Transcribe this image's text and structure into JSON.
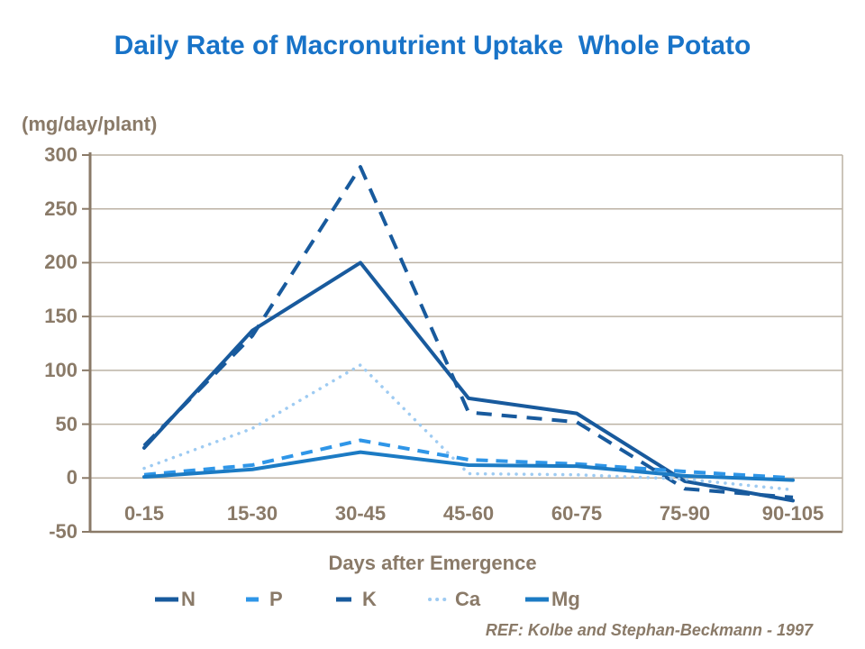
{
  "title": "Daily Rate of Macronutrient Uptake  Whole Potato",
  "reference": "REF: Kolbe and Stephan-Beckmann - 1997",
  "colors": {
    "title_blue": "#1873C8",
    "text_taupe": "#8A7A68",
    "gridline": "#BCB2A4",
    "axis": "#8A7A68",
    "series_dark_blue": "#185A9D",
    "series_bright_blue": "#2F96E8",
    "series_light_blue": "#9ECBF2",
    "series_medium_blue": "#1C7BC4"
  },
  "chart_data": {
    "type": "line",
    "title": "Daily Rate of Macronutrient Uptake  Whole Potato",
    "unit_label": "(mg/day/plant)",
    "xlabel": "Days after Emergence",
    "categories": [
      "0-15",
      "15-30",
      "30-45",
      "45-60",
      "60-75",
      "75-90",
      "90-105"
    ],
    "series": [
      {
        "name": "N",
        "style": "solid",
        "color": "#185A9D",
        "values": [
          28,
          137,
          200,
          74,
          60,
          -3,
          -21
        ]
      },
      {
        "name": "P",
        "style": "dashed",
        "color": "#2F96E8",
        "values": [
          3,
          12,
          35,
          17,
          13,
          6,
          0
        ]
      },
      {
        "name": "K",
        "style": "dashed",
        "color": "#185A9D",
        "values": [
          30,
          132,
          289,
          61,
          52,
          -10,
          -18
        ]
      },
      {
        "name": "Ca",
        "style": "dotted",
        "color": "#9ECBF2",
        "values": [
          9,
          46,
          105,
          4,
          3,
          -1,
          -11
        ]
      },
      {
        "name": "Mg",
        "style": "solid",
        "color": "#1C7BC4",
        "values": [
          1,
          8,
          24,
          12,
          11,
          2,
          -2
        ]
      }
    ],
    "ylim": [
      -50,
      300
    ],
    "yticks": [
      300,
      250,
      200,
      150,
      100,
      50,
      0,
      -50
    ],
    "grid": "horizontal",
    "legend_position": "bottom",
    "legend_labels": [
      "N",
      "P",
      "K",
      "Ca",
      "Mg"
    ]
  }
}
